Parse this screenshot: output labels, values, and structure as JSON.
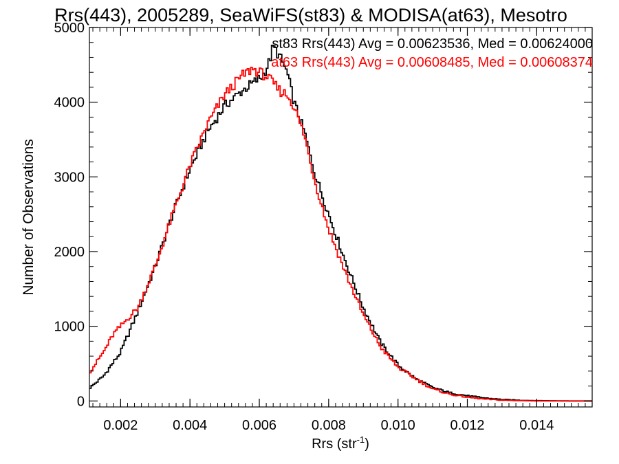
{
  "chart_data": {
    "type": "line",
    "title": "Rrs(443), 2005289, SeaWiFS(st83) & MODISA(at63), Mesotro",
    "xlabel": "Rrs (str",
    "xlabel_sup": "-1",
    "xlabel_close": ")",
    "ylabel": "Number of Observations",
    "xlim": [
      0.0011,
      0.0156
    ],
    "ylim": [
      -80,
      5000
    ],
    "xticks": [
      0.002,
      0.004,
      0.006,
      0.008,
      0.01,
      0.012,
      0.014
    ],
    "xtick_labels": [
      "0.002",
      "0.004",
      "0.006",
      "0.008",
      "0.010",
      "0.012",
      "0.014"
    ],
    "yticks": [
      0,
      1000,
      2000,
      3000,
      4000,
      5000
    ],
    "ytick_labels": [
      "0",
      "1000",
      "2000",
      "3000",
      "4000",
      "5000"
    ],
    "grid": false,
    "legend_position": "top-right",
    "series": [
      {
        "name": "st83 Rrs(443) Avg = 0.00623536, Med = 0.00624000",
        "color": "#000000",
        "step": true,
        "x": [
          0.0011,
          0.0015,
          0.002,
          0.0025,
          0.003,
          0.0035,
          0.004,
          0.0045,
          0.005,
          0.0055,
          0.0058,
          0.0061,
          0.0063,
          0.0064,
          0.0066,
          0.0068,
          0.007,
          0.0073,
          0.0076,
          0.008,
          0.0085,
          0.009,
          0.0095,
          0.01,
          0.0105,
          0.011,
          0.0115,
          0.012,
          0.0125,
          0.013,
          0.0135,
          0.014,
          0.015,
          0.0156
        ],
        "y": [
          170,
          330,
          650,
          1200,
          1800,
          2500,
          3100,
          3600,
          3950,
          4150,
          4250,
          4350,
          4550,
          4750,
          4600,
          4400,
          4000,
          3600,
          3050,
          2500,
          1850,
          1250,
          780,
          480,
          300,
          180,
          110,
          70,
          40,
          20,
          10,
          5,
          0,
          0
        ]
      },
      {
        "name": "at63 Rrs(443) Avg = 0.00608485, Med = 0.00608374",
        "color": "#ff0000",
        "step": true,
        "x": [
          0.0011,
          0.0015,
          0.0018,
          0.002,
          0.0025,
          0.003,
          0.0035,
          0.004,
          0.0045,
          0.005,
          0.0055,
          0.0058,
          0.006,
          0.0062,
          0.0064,
          0.0066,
          0.0068,
          0.007,
          0.0073,
          0.0076,
          0.008,
          0.0085,
          0.009,
          0.0095,
          0.01,
          0.0105,
          0.011,
          0.0115,
          0.012,
          0.0125,
          0.013,
          0.0135,
          0.014,
          0.015,
          0.0156
        ],
        "y": [
          380,
          650,
          900,
          1000,
          1250,
          1800,
          2500,
          3150,
          3700,
          4100,
          4350,
          4450,
          4400,
          4350,
          4250,
          4150,
          4100,
          3950,
          3550,
          2950,
          2300,
          1700,
          1150,
          720,
          450,
          300,
          160,
          90,
          50,
          25,
          10,
          5,
          0,
          0,
          0
        ]
      }
    ]
  }
}
